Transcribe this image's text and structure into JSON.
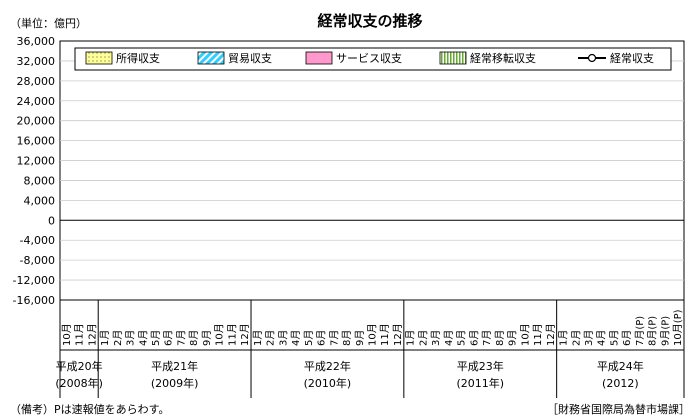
{
  "chart_data": {
    "type": "bar",
    "title": "経常収支の推移",
    "unit_label": "（単位：億円）",
    "ylim": [
      -16000,
      36000
    ],
    "grid": true,
    "legend_position": "top",
    "y_ticks": [
      "36,000",
      "32,000",
      "28,000",
      "24,000",
      "20,000",
      "16,000",
      "12,000",
      "8,000",
      "4,000",
      "0",
      "-4,000",
      "-8,000",
      "-12,000",
      "-16,000"
    ],
    "legend": [
      "所得収支",
      "貿易収支",
      "サービス収支",
      "経常移転収支",
      "経常収支"
    ],
    "month_labels": [
      "10月",
      "11月",
      "12月",
      "1月",
      "2月",
      "3月",
      "4月",
      "5月",
      "6月",
      "7月",
      "8月",
      "9月",
      "10月",
      "11月",
      "12月",
      "1月",
      "2月",
      "3月",
      "4月",
      "5月",
      "6月",
      "7月",
      "8月",
      "9月",
      "10月",
      "11月",
      "12月",
      "1月",
      "2月",
      "3月",
      "4月",
      "5月",
      "6月",
      "7月",
      "8月",
      "9月",
      "10月",
      "11月",
      "12月",
      "1月",
      "2月",
      "3月",
      "4月",
      "5月",
      "6月",
      "7月(P)",
      "8月(P)",
      "9月(P)",
      "10月(P)"
    ],
    "year_labels": [
      {
        "era": "平成20年",
        "western": "(2008年)"
      },
      {
        "era": "平成21年",
        "western": "(2009年)"
      },
      {
        "era": "平成22年",
        "western": "(2010年)"
      },
      {
        "era": "平成23年",
        "western": "(2011年)"
      },
      {
        "era": "平成24年",
        "western": "(2012)"
      }
    ],
    "series_names": [
      "所得収支",
      "貿易収支",
      "サービス収支",
      "経常移転収支",
      "経常収支"
    ]
  },
  "footnote_left": "（備考）Pは速報値をあらわす。",
  "footnote_right": "［財務省国際局為替市場課］",
  "colors": {
    "income": "#ffff99",
    "trade": "#33ccff",
    "services": "#ff99cc",
    "transfers": "#66aa33",
    "line": "#000000",
    "grid": "#cccccc"
  },
  "icon_names": [
    "legend-income-swatch",
    "legend-trade-swatch",
    "legend-services-swatch",
    "legend-transfers-swatch",
    "legend-current-account-line"
  ]
}
